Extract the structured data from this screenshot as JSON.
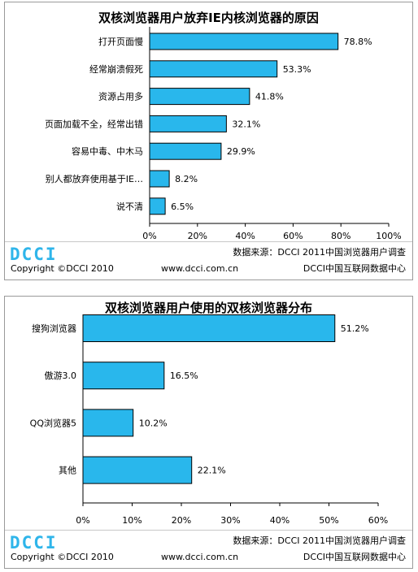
{
  "chart_data": [
    {
      "type": "bar",
      "orientation": "horizontal",
      "title": "双核浏览器用户放弃IE内核浏览器的原因",
      "categories": [
        "打开页面慢",
        "经常崩溃假死",
        "资源占用多",
        "页面加载不全，经常出错",
        "容易中毒、中木马",
        "别人都放弃使用基于IE…",
        "说不清"
      ],
      "values": [
        78.8,
        53.3,
        41.8,
        32.1,
        29.9,
        8.2,
        6.5
      ],
      "value_labels": [
        "78.8%",
        "53.3%",
        "41.8%",
        "32.1%",
        "29.9%",
        "8.2%",
        "6.5%"
      ],
      "xlim": [
        0,
        100
      ],
      "xticks": [
        "0%",
        "20%",
        "40%",
        "60%",
        "80%",
        "100%"
      ],
      "grid": false,
      "bar_color": "#29b7ec"
    },
    {
      "type": "bar",
      "orientation": "horizontal",
      "title": "双核浏览器用户使用的双核浏览器分布",
      "categories": [
        "搜狗浏览器",
        "傲游3.0",
        "QQ浏览器5",
        "其他"
      ],
      "values": [
        51.2,
        16.5,
        10.2,
        22.1
      ],
      "value_labels": [
        "51.2%",
        "16.5%",
        "10.2%",
        "22.1%"
      ],
      "xlim": [
        0,
        60
      ],
      "xticks": [
        "0%",
        "10%",
        "20%",
        "30%",
        "40%",
        "50%",
        "60%"
      ],
      "grid": false,
      "bar_color": "#29b7ec"
    }
  ],
  "footer": {
    "logo": "DCCI",
    "source": "数据来源：DCCI 2011中国浏览器用户调查",
    "copyright": "Copyright ©DCCI 2010",
    "url": "www.dcci.com.cn",
    "org": "DCCI中国互联网数据中心"
  }
}
